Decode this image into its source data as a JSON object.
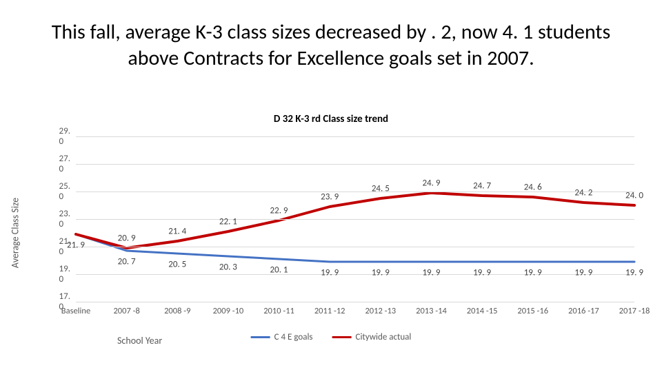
{
  "headline": "This fall, average K-3 class sizes decreased by . 2, now 4. 1 students above Contracts for Excellence goals set in 2007.",
  "chart": {
    "type": "line",
    "title": "D 32 K-3 rd Class size trend",
    "ylabel": "Average Class Size",
    "xlabel": "School Year",
    "ylim": [
      17.0,
      29.0
    ],
    "ytick_step": 2.0,
    "yticks": [
      "17. 0",
      "19. 0",
      "21. 0",
      "23. 0",
      "25. 0",
      "27. 0",
      "29. 0"
    ],
    "categories": [
      "Baseline",
      "2007 -8",
      "2008 -9",
      "2009 -10",
      "2010 -11",
      "2011 -12",
      "2012 -13",
      "2013 -14",
      "2014 -15",
      "2015 -16",
      "2016 -17",
      "2017 -18"
    ],
    "grid_color": "#d9d9d9",
    "background_color": "#ffffff",
    "label_fontsize": 13,
    "title_fontsize": 15,
    "line_width_goals": 3,
    "line_width_actual": 4,
    "series": [
      {
        "name": "C 4 E goals",
        "color": "#4472c4",
        "values": [
          21.9,
          20.7,
          20.5,
          20.3,
          20.1,
          19.9,
          19.9,
          19.9,
          19.9,
          19.9,
          19.9,
          19.9
        ],
        "labels": [
          "21. 9",
          "20. 7",
          "20. 5",
          "20. 3",
          "20. 1",
          "19. 9",
          "19. 9",
          "19. 9",
          "19. 9",
          "19. 9",
          "19. 9",
          "19. 9"
        ],
        "label_dy": 16
      },
      {
        "name": "Citywide actual",
        "color": "#c00000",
        "values": [
          21.9,
          20.9,
          21.4,
          22.1,
          22.9,
          23.9,
          24.5,
          24.9,
          24.7,
          24.6,
          24.2,
          24.0
        ],
        "labels": [
          "",
          "20. 9",
          "21. 4",
          "22. 1",
          "22. 9",
          "23. 9",
          "24. 5",
          "24. 9",
          "24. 7",
          "24. 6",
          "24. 2",
          "24. 0"
        ],
        "label_dy": -14
      }
    ]
  },
  "legend": {
    "items": [
      {
        "label": "C 4 E goals",
        "color": "#4472c4"
      },
      {
        "label": "Citywide actual",
        "color": "#c00000"
      }
    ]
  }
}
